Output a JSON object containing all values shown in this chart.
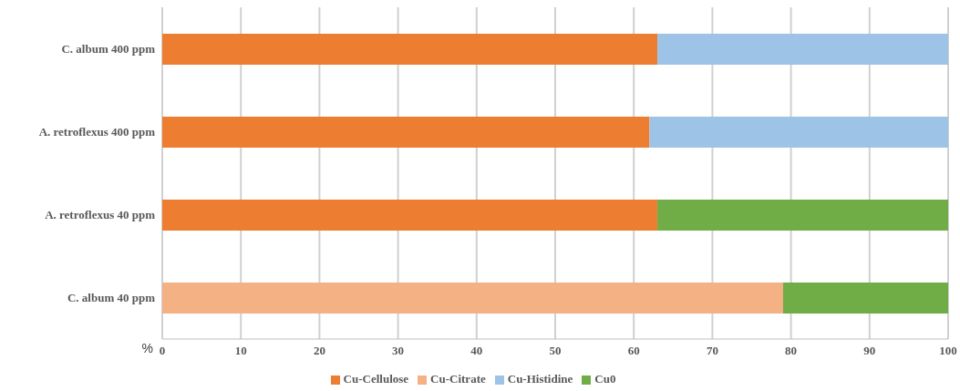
{
  "chart_data": {
    "type": "bar",
    "orientation": "horizontal",
    "stacked": true,
    "xlabel": "%",
    "categories": [
      "C. album 400 ppm",
      "A. retroflexus 400 ppm",
      "A. retroflexus 40 ppm",
      "C. album 40 ppm"
    ],
    "series": [
      {
        "name": "Cu-Citrate",
        "color": "#f4b183",
        "values": [
          null,
          null,
          null,
          79
        ]
      },
      {
        "name": "Cu-Cellulose",
        "color": "#ed7d31",
        "values": [
          63,
          62,
          63,
          null
        ]
      },
      {
        "name": "Cu0",
        "color": "#70ad47",
        "values": [
          null,
          null,
          37,
          21
        ]
      },
      {
        "name": "Cu-Histidine",
        "color": "#9dc3e6",
        "values": [
          37,
          38,
          null,
          null
        ]
      }
    ],
    "xlim": [
      0,
      100
    ],
    "xticks": [
      0,
      10,
      20,
      30,
      40,
      50,
      60,
      70,
      80,
      90,
      100
    ],
    "grid": "x",
    "legend": "bottom"
  }
}
